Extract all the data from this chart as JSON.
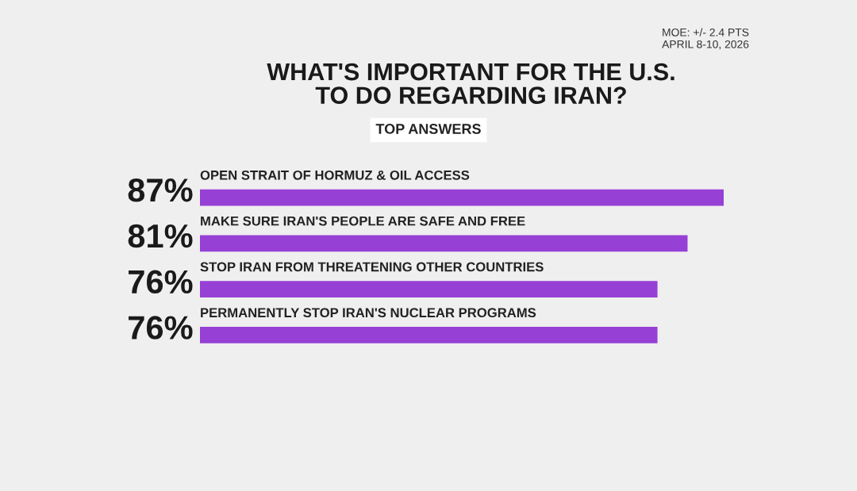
{
  "chart_data": {
    "type": "bar",
    "orientation": "horizontal",
    "title": "WHAT'S IMPORTANT FOR THE U.S.\nTO DO REGARDING IRAN?",
    "subtitle": "TOP ANSWERS",
    "categories": [
      "OPEN STRAIT OF HORMUZ & OIL ACCESS",
      "MAKE SURE IRAN'S PEOPLE ARE SAFE AND FREE",
      "STOP IRAN FROM THREATENING OTHER COUNTRIES",
      "PERMANENTLY STOP IRAN'S NUCLEAR PROGRAMS"
    ],
    "values": [
      87,
      81,
      76,
      76
    ],
    "value_labels": [
      "87%",
      "81%",
      "76%",
      "76%"
    ],
    "color": "#9640d6",
    "annotations": [
      "MOE: +/- 2.4 PTS",
      "APRIL 8-10, 2026"
    ]
  }
}
